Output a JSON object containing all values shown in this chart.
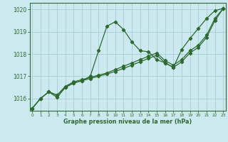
{
  "title": "Graphe pression niveau de la mer (hPa)",
  "bg_color": "#cce9f0",
  "grid_color": "#a8cdd6",
  "line_color": "#2d6a2d",
  "spine_color": "#2d6a2d",
  "ylim": [
    1015.45,
    1020.3
  ],
  "xlim": [
    -0.3,
    23.3
  ],
  "yticks": [
    1016,
    1017,
    1018,
    1019,
    1020
  ],
  "xticks": [
    0,
    1,
    2,
    3,
    4,
    5,
    6,
    7,
    8,
    9,
    10,
    11,
    12,
    13,
    14,
    15,
    16,
    17,
    18,
    19,
    20,
    21,
    22,
    23
  ],
  "series": [
    [
      1015.55,
      1016.0,
      1016.3,
      1016.05,
      1016.5,
      1016.7,
      1016.8,
      1017.0,
      1018.15,
      1019.25,
      1019.45,
      1019.1,
      1018.55,
      1018.15,
      1018.1,
      1017.75,
      1017.6,
      1017.4,
      1018.2,
      1018.7,
      1019.15,
      1019.6,
      1019.95,
      1020.05
    ],
    [
      1015.55,
      1016.0,
      1016.3,
      1016.15,
      1016.55,
      1016.75,
      1016.85,
      1016.95,
      1017.05,
      1017.15,
      1017.3,
      1017.45,
      1017.6,
      1017.75,
      1017.9,
      1018.05,
      1017.7,
      1017.5,
      1017.75,
      1018.15,
      1018.4,
      1018.85,
      1019.6,
      1020.05
    ],
    [
      1015.55,
      1016.0,
      1016.3,
      1016.15,
      1016.5,
      1016.7,
      1016.8,
      1016.9,
      1017.0,
      1017.1,
      1017.22,
      1017.35,
      1017.5,
      1017.65,
      1017.8,
      1017.95,
      1017.6,
      1017.4,
      1017.65,
      1018.05,
      1018.3,
      1018.75,
      1019.5,
      1020.05
    ]
  ]
}
